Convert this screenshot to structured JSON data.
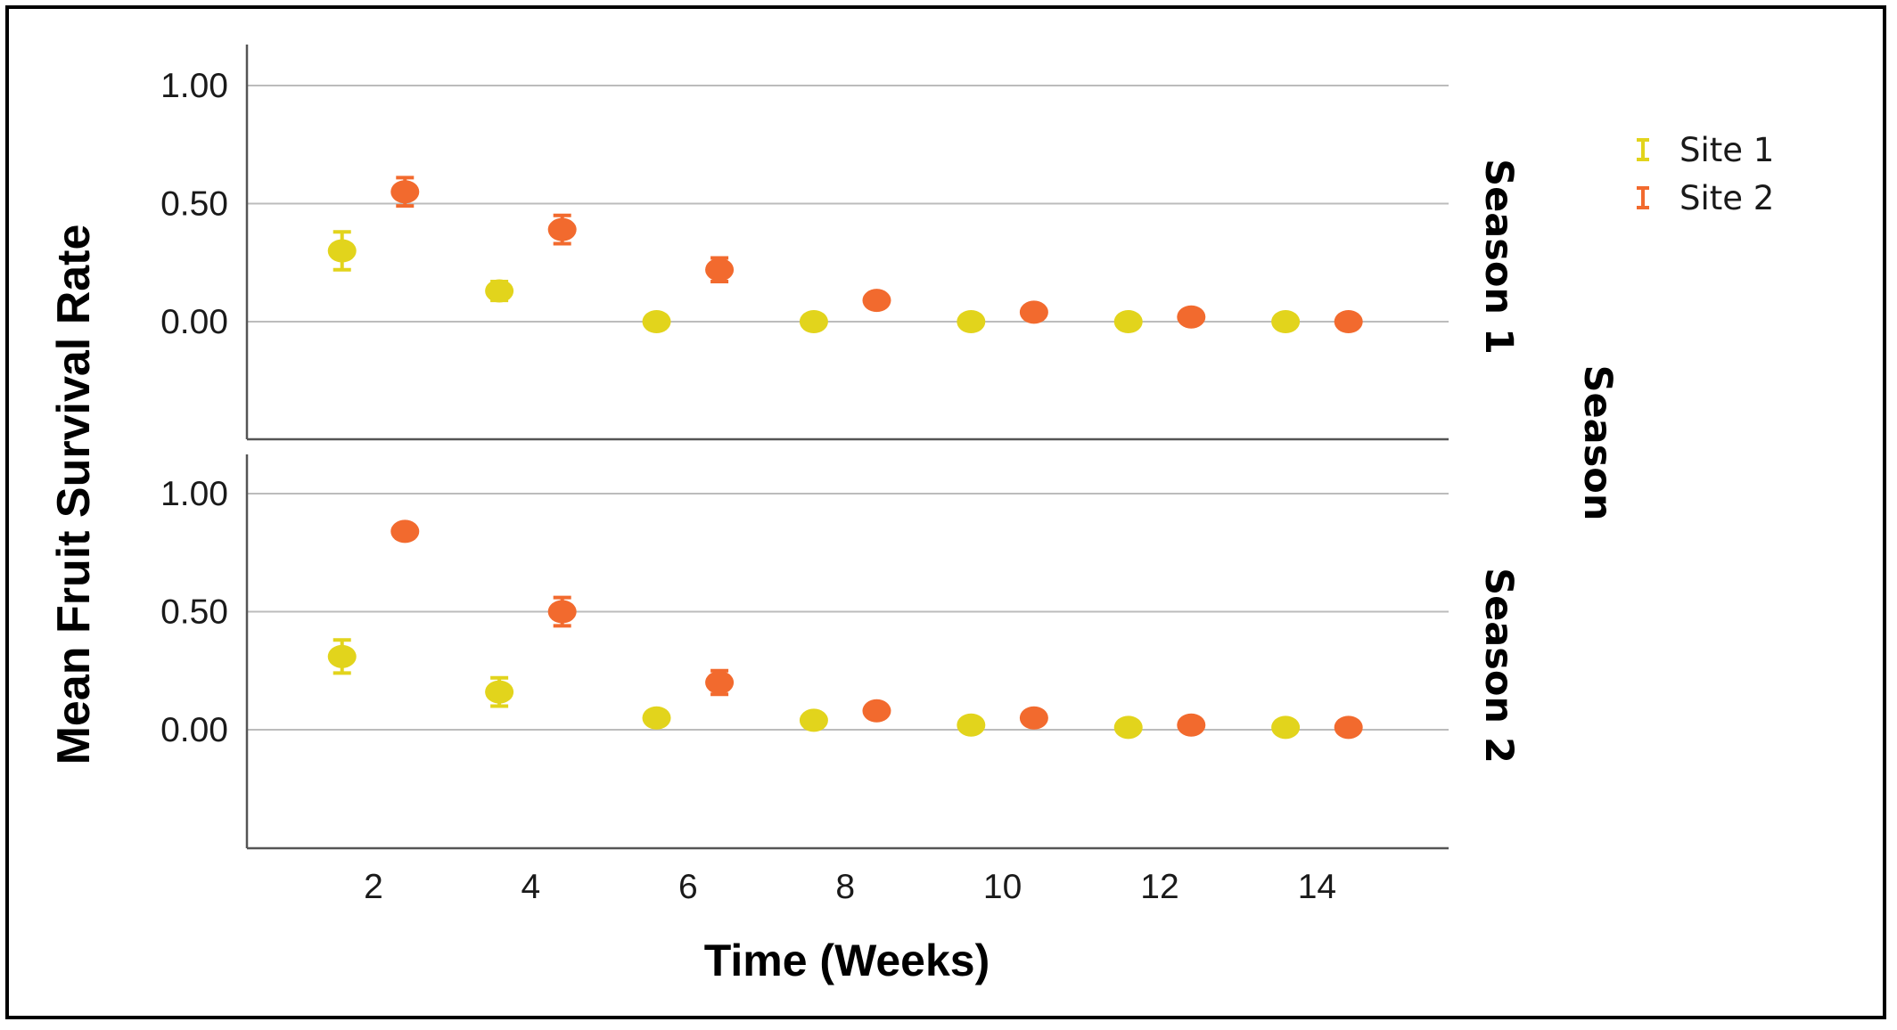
{
  "chart_data": {
    "type": "scatter",
    "xlabel": "Time (Weeks)",
    "ylabel": "Mean Fruit Survival Rate",
    "facet_title": "Season",
    "x_ticks": [
      "2",
      "4",
      "6",
      "8",
      "10",
      "12",
      "14"
    ],
    "y_ticks": [
      "1.00",
      "0.50",
      "0.00"
    ],
    "xlim": [
      0.4,
      15.7
    ],
    "ylim": [
      -0.5,
      1.15
    ],
    "grid": "horizontal",
    "legend_placement": "right",
    "series": [
      {
        "name": "Site 1",
        "color": "#e2d41c"
      },
      {
        "name": "Site 2",
        "color": "#f26a2e"
      }
    ],
    "panels": [
      {
        "label": "Season 1",
        "series": [
          {
            "name": "Site 1",
            "points": [
              {
                "x": 1.6,
                "y": 0.3,
                "lo": 0.22,
                "hi": 0.38
              },
              {
                "x": 3.6,
                "y": 0.13,
                "lo": 0.09,
                "hi": 0.17
              },
              {
                "x": 5.6,
                "y": 0.0
              },
              {
                "x": 7.6,
                "y": 0.0
              },
              {
                "x": 9.6,
                "y": 0.0
              },
              {
                "x": 11.6,
                "y": 0.0
              },
              {
                "x": 13.6,
                "y": 0.0
              }
            ]
          },
          {
            "name": "Site 2",
            "points": [
              {
                "x": 2.4,
                "y": 0.55,
                "lo": 0.49,
                "hi": 0.61
              },
              {
                "x": 4.4,
                "y": 0.39,
                "lo": 0.33,
                "hi": 0.45
              },
              {
                "x": 6.4,
                "y": 0.22,
                "lo": 0.17,
                "hi": 0.27
              },
              {
                "x": 8.4,
                "y": 0.09
              },
              {
                "x": 10.4,
                "y": 0.04
              },
              {
                "x": 12.4,
                "y": 0.02
              },
              {
                "x": 14.4,
                "y": 0.0
              }
            ]
          }
        ]
      },
      {
        "label": "Season 2",
        "series": [
          {
            "name": "Site 1",
            "points": [
              {
                "x": 1.6,
                "y": 0.31,
                "lo": 0.24,
                "hi": 0.38
              },
              {
                "x": 3.6,
                "y": 0.16,
                "lo": 0.1,
                "hi": 0.22
              },
              {
                "x": 5.6,
                "y": 0.05
              },
              {
                "x": 7.6,
                "y": 0.04
              },
              {
                "x": 9.6,
                "y": 0.02
              },
              {
                "x": 11.6,
                "y": 0.01
              },
              {
                "x": 13.6,
                "y": 0.01
              }
            ]
          },
          {
            "name": "Site 2",
            "points": [
              {
                "x": 2.4,
                "y": 0.84
              },
              {
                "x": 4.4,
                "y": 0.5,
                "lo": 0.44,
                "hi": 0.56
              },
              {
                "x": 6.4,
                "y": 0.2,
                "lo": 0.15,
                "hi": 0.25
              },
              {
                "x": 8.4,
                "y": 0.08
              },
              {
                "x": 10.4,
                "y": 0.05
              },
              {
                "x": 12.4,
                "y": 0.02
              },
              {
                "x": 14.4,
                "y": 0.01
              }
            ]
          }
        ]
      }
    ]
  }
}
